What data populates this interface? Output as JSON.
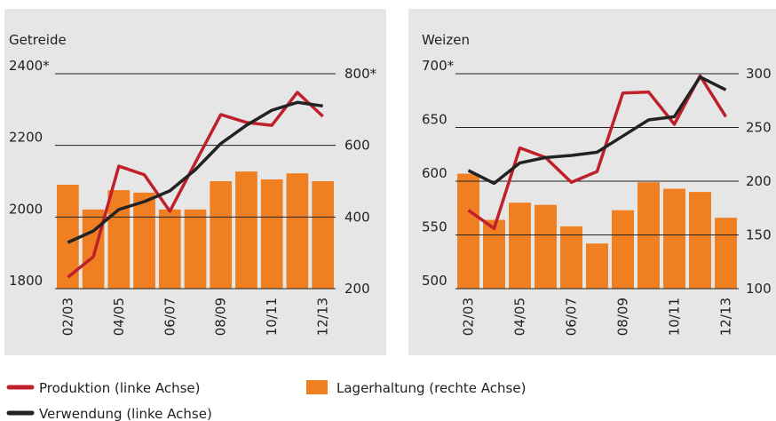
{
  "chart_data": [
    {
      "type": "bar_line",
      "title": "Getreide",
      "categories": [
        "02/03",
        null,
        "04/05",
        null,
        "06/07",
        null,
        "08/09",
        null,
        "10/11",
        null,
        "12/13"
      ],
      "series": [
        {
          "name": "Produktion (linke Achse)",
          "color": "#c0202a",
          "values": [
            1832,
            1889,
            2142,
            2118,
            2016,
            2152,
            2286,
            2264,
            2256,
            2348,
            2281
          ]
        },
        {
          "name": "Verwendung (linke Achse)",
          "color": "#222222",
          "values": [
            1929,
            1961,
            2021,
            2043,
            2073,
            2132,
            2205,
            2256,
            2298,
            2320,
            2310
          ]
        },
        {
          "name": "Lagerhaltung (rechte Achse)",
          "color": "#f07f22",
          "axis": "y2",
          "values": [
            490,
            421,
            475,
            468,
            421,
            421,
            500,
            527,
            505,
            522,
            500
          ]
        }
      ],
      "ylim": [
        1800,
        2400
      ],
      "yticks": [
        1800,
        2000,
        2200,
        {
          "value": 2400,
          "label": "2400*"
        }
      ],
      "y2lim": [
        200,
        800
      ],
      "y2ticks": [
        200,
        400,
        600,
        {
          "value": 800,
          "label": "800*"
        }
      ]
    },
    {
      "type": "bar_line",
      "title": "Weizen",
      "categories": [
        "02/03",
        null,
        "04/05",
        null,
        "06/07",
        null,
        "08/09",
        null,
        "10/11",
        null,
        "12/13"
      ],
      "series": [
        {
          "name": "Produktion (linke Achse)",
          "color": "#c0202a",
          "values": [
            573,
            556,
            631,
            622,
            599,
            609,
            682,
            683,
            653,
            698,
            660
          ]
        },
        {
          "name": "Verwendung (linke Achse)",
          "color": "#222222",
          "values": [
            610,
            598,
            617,
            622,
            624,
            627,
            642,
            657,
            660,
            697,
            685
          ]
        },
        {
          "name": "Lagerhaltung (rechte Achse)",
          "color": "#f07f22",
          "axis": "y2",
          "values": [
            207,
            164,
            180,
            178,
            158,
            142,
            173,
            199,
            193,
            190,
            166
          ]
        }
      ],
      "ylim": [
        500,
        700
      ],
      "yticks": [
        500,
        550,
        600,
        650,
        {
          "value": 700,
          "label": "700*"
        }
      ],
      "y2lim": [
        100,
        300
      ],
      "y2ticks": [
        100,
        150,
        200,
        250,
        300
      ]
    }
  ]
}
